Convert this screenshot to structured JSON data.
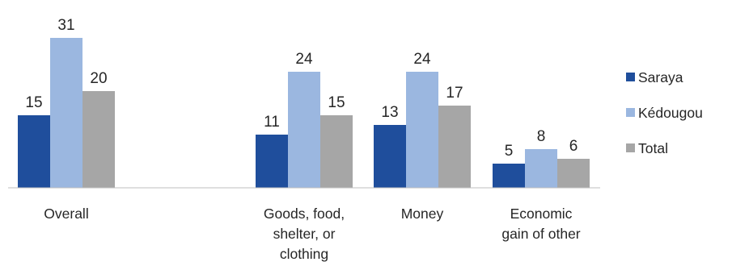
{
  "chart_data": {
    "type": "bar",
    "title": "",
    "xlabel": "",
    "ylabel": "",
    "ylim": [
      0,
      35
    ],
    "grid": false,
    "legend_position": "right",
    "categories": [
      [
        "Overall"
      ],
      [
        "Goods, food,",
        "shelter, or",
        "clothing"
      ],
      [
        "Money"
      ],
      [
        "Economic",
        "gain of other"
      ]
    ],
    "series": [
      {
        "name": "Saraya",
        "color": "#1f4e9c",
        "values": [
          15,
          11,
          13,
          5
        ]
      },
      {
        "name": "Kédougou",
        "color": "#9bb7e0",
        "values": [
          31,
          24,
          24,
          8
        ]
      },
      {
        "name": "Total",
        "color": "#a6a6a6",
        "values": [
          20,
          15,
          17,
          6
        ]
      }
    ]
  }
}
